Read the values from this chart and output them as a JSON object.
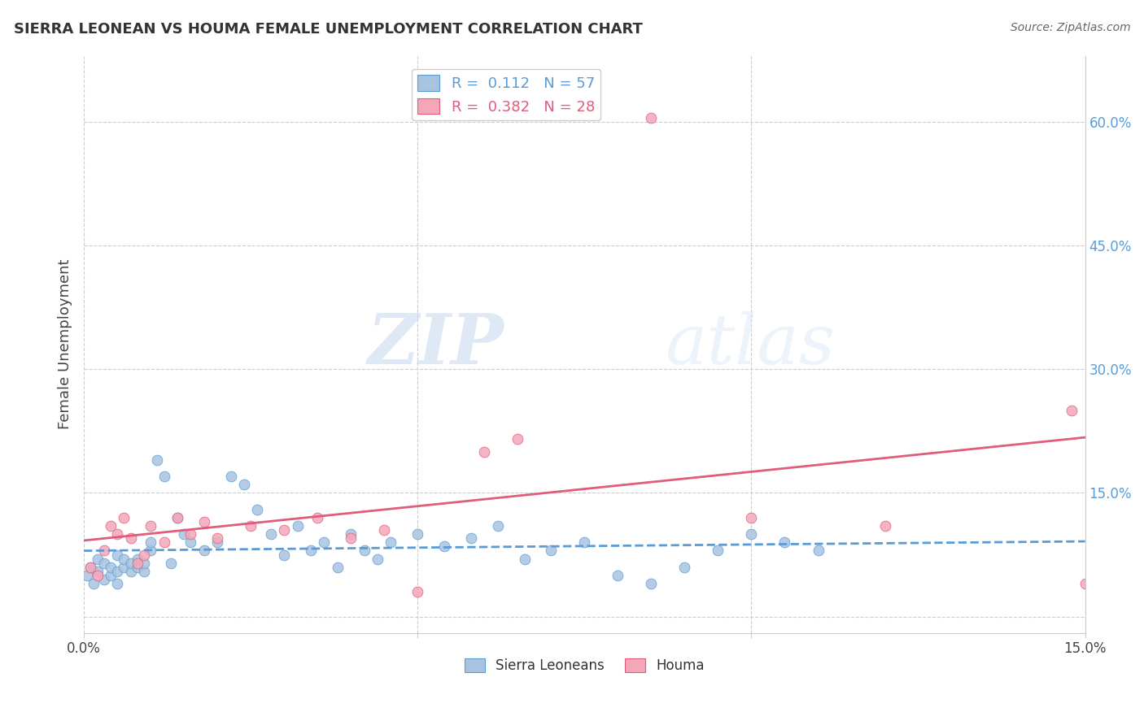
{
  "title": "SIERRA LEONEAN VS HOUMA FEMALE UNEMPLOYMENT CORRELATION CHART",
  "source": "Source: ZipAtlas.com",
  "ylabel": "Female Unemployment",
  "xlim": [
    0.0,
    0.15
  ],
  "ylim": [
    -0.02,
    0.68
  ],
  "watermark": "ZIPatlas",
  "blue_color": "#a8c4e0",
  "blue_dark": "#5b9bd5",
  "pink_color": "#f4a7b9",
  "pink_dark": "#e05c7a",
  "R_blue": 0.112,
  "N_blue": 57,
  "R_pink": 0.382,
  "N_pink": 28,
  "sierra_x": [
    0.0005,
    0.001,
    0.0015,
    0.002,
    0.002,
    0.003,
    0.003,
    0.004,
    0.004,
    0.005,
    0.005,
    0.005,
    0.006,
    0.006,
    0.007,
    0.007,
    0.008,
    0.008,
    0.009,
    0.009,
    0.01,
    0.01,
    0.011,
    0.012,
    0.013,
    0.014,
    0.015,
    0.016,
    0.018,
    0.02,
    0.022,
    0.024,
    0.026,
    0.028,
    0.03,
    0.032,
    0.034,
    0.036,
    0.038,
    0.04,
    0.042,
    0.044,
    0.046,
    0.05,
    0.054,
    0.058,
    0.062,
    0.066,
    0.07,
    0.075,
    0.08,
    0.085,
    0.09,
    0.095,
    0.1,
    0.105,
    0.11
  ],
  "sierra_y": [
    0.05,
    0.06,
    0.04,
    0.055,
    0.07,
    0.045,
    0.065,
    0.05,
    0.06,
    0.04,
    0.075,
    0.055,
    0.06,
    0.07,
    0.055,
    0.065,
    0.06,
    0.07,
    0.055,
    0.065,
    0.08,
    0.09,
    0.19,
    0.17,
    0.065,
    0.12,
    0.1,
    0.09,
    0.08,
    0.09,
    0.17,
    0.16,
    0.13,
    0.1,
    0.075,
    0.11,
    0.08,
    0.09,
    0.06,
    0.1,
    0.08,
    0.07,
    0.09,
    0.1,
    0.085,
    0.095,
    0.11,
    0.07,
    0.08,
    0.09,
    0.05,
    0.04,
    0.06,
    0.08,
    0.1,
    0.09,
    0.08
  ],
  "houma_x": [
    0.001,
    0.002,
    0.003,
    0.004,
    0.005,
    0.006,
    0.007,
    0.008,
    0.009,
    0.01,
    0.012,
    0.014,
    0.016,
    0.018,
    0.02,
    0.025,
    0.03,
    0.035,
    0.04,
    0.045,
    0.05,
    0.06,
    0.065,
    0.085,
    0.1,
    0.12,
    0.148,
    0.15
  ],
  "houma_y": [
    0.06,
    0.05,
    0.08,
    0.11,
    0.1,
    0.12,
    0.095,
    0.065,
    0.075,
    0.11,
    0.09,
    0.12,
    0.1,
    0.115,
    0.095,
    0.11,
    0.105,
    0.12,
    0.095,
    0.105,
    0.03,
    0.2,
    0.215,
    0.605,
    0.12,
    0.11,
    0.25,
    0.04
  ],
  "grid_color": "#cccccc",
  "background_color": "#ffffff",
  "yticks_right": [
    0.0,
    0.15,
    0.3,
    0.45,
    0.6
  ],
  "ytick_right_labels": [
    "",
    "15.0%",
    "30.0%",
    "45.0%",
    "60.0%"
  ]
}
